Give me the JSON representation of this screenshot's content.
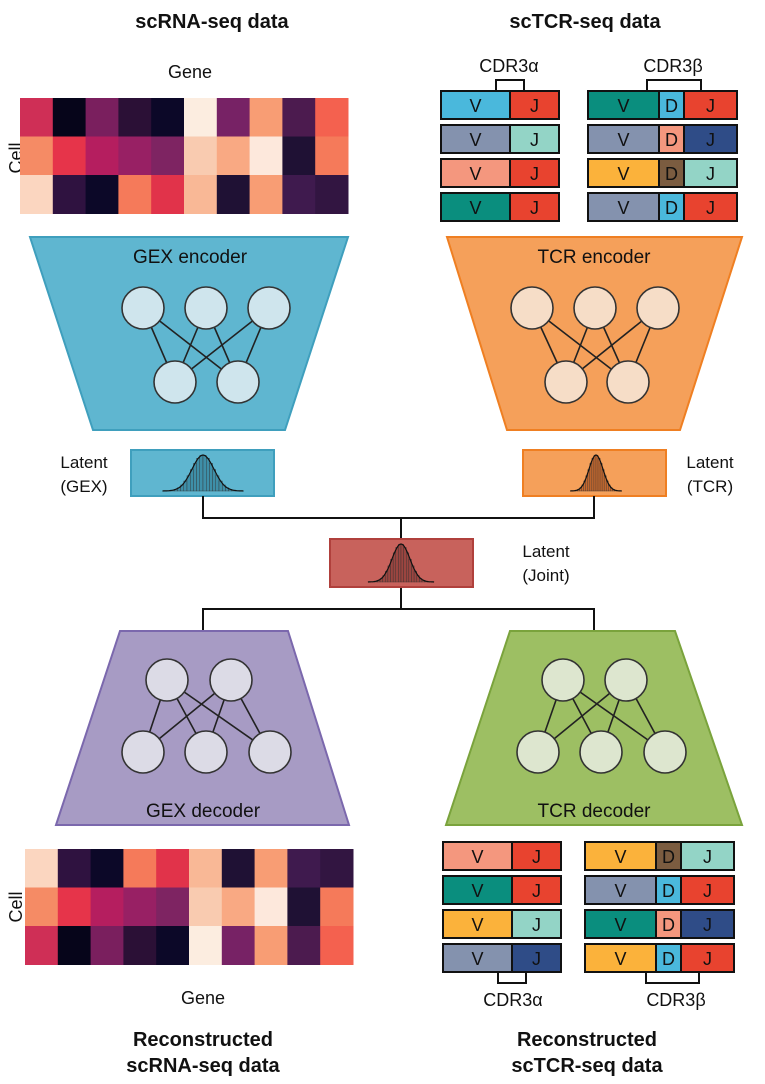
{
  "titles": {
    "scrna": "scRNA-seq data",
    "sctcr": "scTCR-seq data",
    "recon_scrna_line1": "Reconstructed",
    "recon_scrna_line2": "scRNA-seq data",
    "recon_sctcr_line1": "Reconstructed",
    "recon_sctcr_line2": "scTCR-seq data"
  },
  "axis_labels": {
    "gene": "Gene",
    "cell": "Cell"
  },
  "cdr_labels": {
    "alpha": "CDR3α",
    "beta": "CDR3β"
  },
  "encoders": {
    "gex": "GEX encoder",
    "tcr": "TCR encoder"
  },
  "decoders": {
    "gex": "GEX decoder",
    "tcr": "TCR decoder"
  },
  "latent": {
    "gex_line1": "Latent",
    "gex_line2": "(GEX)",
    "tcr_line1": "Latent",
    "tcr_line2": "(TCR)",
    "joint_line1": "Latent",
    "joint_line2": "(Joint)"
  },
  "segment_letters": {
    "v": "V",
    "d": "D",
    "j": "J"
  },
  "colors": {
    "gex_encoder": "#5fb6d0",
    "tcr_encoder": "#f5a05a",
    "joint_latent": "#c8625c",
    "gex_decoder": "#a79bc4",
    "tcr_decoder": "#9dbf63",
    "node_fill_gex_enc": "#cfe5ed",
    "node_fill_tcr_enc": "#f6ddc7",
    "node_fill_gex_dec": "#dcdbe6",
    "node_fill_tcr_dec": "#dde6cf"
  },
  "heatmap_colors": {
    "top": [
      [
        "#cf2f56",
        "#06051a",
        "#7a1f5e",
        "#2b1036",
        "#0c0828",
        "#fcede0",
        "#772265",
        "#f89d74",
        "#4c1b4f",
        "#f4614f"
      ],
      [
        "#f58b65",
        "#e6344a",
        "#b51e5f",
        "#982064",
        "#7e2462",
        "#f9cbb0",
        "#f9a983",
        "#fde8dc",
        "#1f1134",
        "#f57a5a"
      ],
      [
        "#fbd6c0",
        "#2f1240",
        "#0c0828",
        "#f57a5a",
        "#e1334a",
        "#f9b896",
        "#1f1134",
        "#f89d74",
        "#3f1a4e",
        "#321541"
      ]
    ],
    "bottom": [
      [
        "#fbd6c0",
        "#2f1240",
        "#0c0828",
        "#f57a5a",
        "#e1334a",
        "#f9b896",
        "#1f1134",
        "#f89d74",
        "#3f1a4e",
        "#321541"
      ],
      [
        "#f58b65",
        "#e6344a",
        "#b51e5f",
        "#982064",
        "#7e2462",
        "#f9cbb0",
        "#f9a983",
        "#fde8dc",
        "#1f1134",
        "#f57a5a"
      ],
      [
        "#cf2f56",
        "#06051a",
        "#7a1f5e",
        "#2b1036",
        "#0c0828",
        "#fcede0",
        "#772265",
        "#f89d74",
        "#4c1b4f",
        "#f4614f"
      ]
    ]
  },
  "alpha_chains_top": [
    {
      "v": "#4ab8dc",
      "j": "#e8432f"
    },
    {
      "v": "#8492ae",
      "j": "#93d4c6"
    },
    {
      "v": "#f4977e",
      "j": "#e8432f"
    },
    {
      "v": "#0a8e7e",
      "j": "#e8432f"
    }
  ],
  "beta_chains_top": [
    {
      "v": "#0a8e7e",
      "d": "#4ab8dc",
      "j": "#e8432f"
    },
    {
      "v": "#8492ae",
      "d": "#f4977e",
      "j": "#2f4c87"
    },
    {
      "v": "#fbb23b",
      "d": "#7b5c40",
      "j": "#93d4c6"
    },
    {
      "v": "#8492ae",
      "d": "#4ab8dc",
      "j": "#e8432f"
    }
  ],
  "alpha_chains_bottom": [
    {
      "v": "#f4977e",
      "j": "#e8432f"
    },
    {
      "v": "#0a8e7e",
      "j": "#e8432f"
    },
    {
      "v": "#fbb23b",
      "j": "#93d4c6"
    },
    {
      "v": "#8492ae",
      "j": "#2f4c87"
    }
  ],
  "beta_chains_bottom": [
    {
      "v": "#fbb23b",
      "d": "#7b5c40",
      "j": "#93d4c6"
    },
    {
      "v": "#8492ae",
      "d": "#4ab8dc",
      "j": "#e8432f"
    },
    {
      "v": "#0a8e7e",
      "d": "#f4977e",
      "j": "#2f4c87"
    },
    {
      "v": "#fbb23b",
      "d": "#4ab8dc",
      "j": "#e8432f"
    }
  ]
}
